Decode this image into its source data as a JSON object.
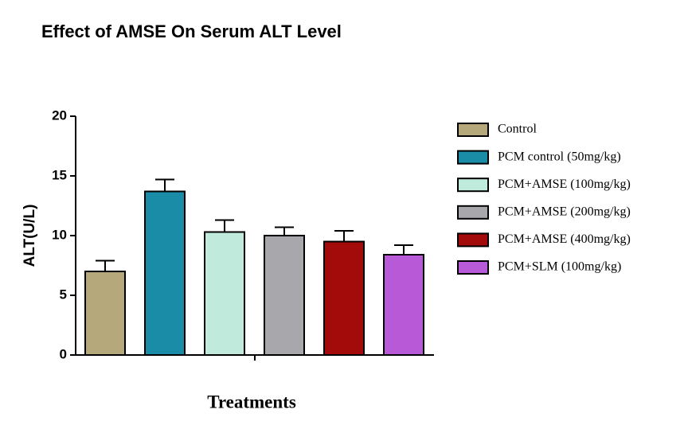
{
  "chart_data": {
    "type": "bar",
    "title": "Effect of AMSE On Serum ALT Level",
    "y_label": "ALT(U/L)",
    "x_label": "Treatments",
    "categories": [
      null
    ],
    "series": [
      {
        "name": "Control",
        "color": "#b5a87a",
        "values": [
          7.0
        ],
        "errors": [
          0.9
        ]
      },
      {
        "name": "PCM control (50mg/kg)",
        "color": "#1a8ca8",
        "values": [
          13.7
        ],
        "errors": [
          1.0
        ]
      },
      {
        "name": "PCM+AMSE (100mg/kg)",
        "color": "#bfeadc",
        "values": [
          10.3
        ],
        "errors": [
          1.0
        ]
      },
      {
        "name": "PCM+AMSE (200mg/kg)",
        "color": "#a8a8ac",
        "values": [
          10.0
        ],
        "errors": [
          0.7
        ]
      },
      {
        "name": "PCM+AMSE (400mg/kg)",
        "color": "#a30a0a",
        "values": [
          9.5
        ],
        "errors": [
          0.9
        ]
      },
      {
        "name": "PCM+SLM (100mg/kg)",
        "color": "#b85ad8",
        "values": [
          8.4
        ],
        "errors": [
          0.8
        ]
      }
    ],
    "ylim": [
      0,
      20
    ],
    "yticks": [
      0,
      5,
      10,
      15,
      20
    ],
    "legend": "right"
  }
}
